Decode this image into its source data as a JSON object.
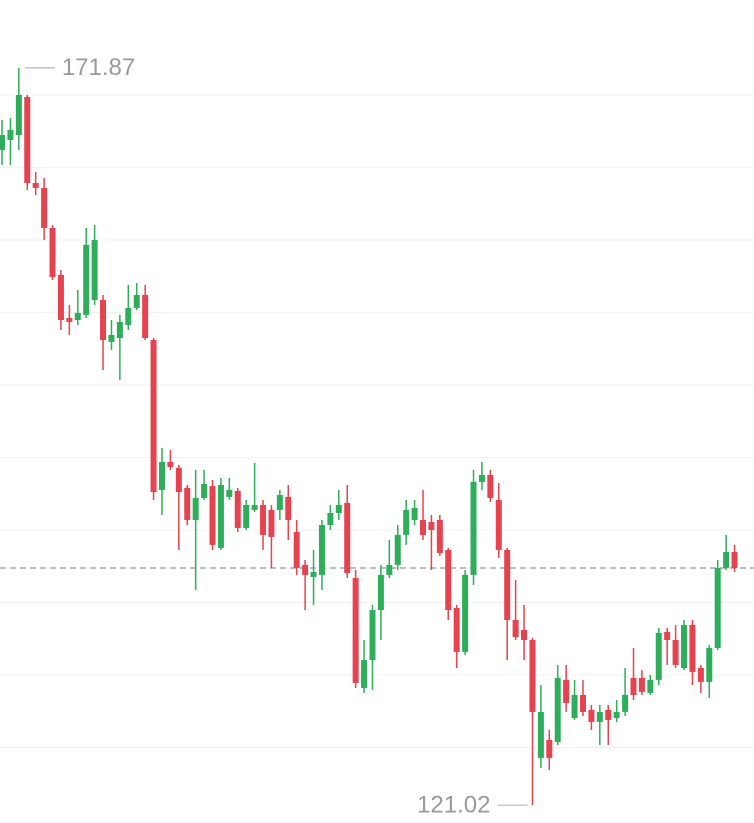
{
  "chart_data": {
    "type": "candlestick",
    "up_color": "#2eae5a",
    "down_color": "#e4434f",
    "grid": true,
    "ylim": [
      119.79,
      176.55
    ],
    "yticks": [
      125,
      130,
      135,
      140,
      145,
      150,
      155,
      160,
      165,
      170
    ],
    "open": [
      166.21,
      166.9,
      167.24,
      169.86,
      163.93,
      163.59,
      160.83,
      157.59,
      154.62,
      154.48,
      154.83,
      155.86,
      155.86,
      152.97,
      153.24,
      154.14,
      155.31,
      156.21,
      153.1,
      142.76,
      144.69,
      144.28,
      142.9,
      140.69,
      142.21,
      143.03,
      138.76,
      142.28,
      142.69,
      140.14,
      141.38,
      141.72,
      141.38,
      141.38,
      142.28,
      139.86,
      137.59,
      136.76,
      136.9,
      140.34,
      141.17,
      141.86,
      136.69,
      129.1,
      131.03,
      134.48,
      136.9,
      137.59,
      139.66,
      140.69,
      140.69,
      140.55,
      140.69,
      138.62,
      134.62,
      131.59,
      136.9,
      143.31,
      143.79,
      142.07,
      138.62,
      133.79,
      133.1,
      132.41,
      124.28,
      125.52,
      125.38,
      129.66,
      127.03,
      128.62,
      127.59,
      126.76,
      127.59,
      127.03,
      127.45,
      129.79,
      129.79,
      128.76,
      129.66,
      132.97,
      132.41,
      130.48,
      133.45,
      130.48,
      129.52,
      131.86,
      137.38,
      138.48
    ],
    "high": [
      168.28,
      168.41,
      171.87,
      170.0,
      164.69,
      164.28,
      161.03,
      157.93,
      155.52,
      156.55,
      160.83,
      161.03,
      156.21,
      154.48,
      154.83,
      156.9,
      157.03,
      156.9,
      153.24,
      145.66,
      145.52,
      144.48,
      143.1,
      144.14,
      144.14,
      143.45,
      143.59,
      143.59,
      142.9,
      142.07,
      144.62,
      142.07,
      141.72,
      142.76,
      143.1,
      140.69,
      137.93,
      138.62,
      140.69,
      141.72,
      142.76,
      143.1,
      137.24,
      132.41,
      134.83,
      137.59,
      139.31,
      140.34,
      142.07,
      142.07,
      142.76,
      141.03,
      141.03,
      138.76,
      134.83,
      137.24,
      144.14,
      144.69,
      144.14,
      143.24,
      138.76,
      136.55,
      134.83,
      132.55,
      129.31,
      126.21,
      130.69,
      130.69,
      129.66,
      129.66,
      127.93,
      127.93,
      127.93,
      128.28,
      130.48,
      131.86,
      130.34,
      130.0,
      133.24,
      133.24,
      133.45,
      133.79,
      133.79,
      130.69,
      132.07,
      137.93,
      139.66,
      138.97
    ],
    "low": [
      165.17,
      165.17,
      166.21,
      163.45,
      163.1,
      160.0,
      157.24,
      153.79,
      153.45,
      154.14,
      154.62,
      155.52,
      151.03,
      152.41,
      150.34,
      153.79,
      155.17,
      153.1,
      142.07,
      141.03,
      144.14,
      138.62,
      140.34,
      135.86,
      142.07,
      138.62,
      138.62,
      142.07,
      139.86,
      140.0,
      141.24,
      138.62,
      137.38,
      140.69,
      139.31,
      136.9,
      134.48,
      134.83,
      135.86,
      140.0,
      140.69,
      136.69,
      129.1,
      128.76,
      128.97,
      132.41,
      136.69,
      137.24,
      138.97,
      140.34,
      139.31,
      137.24,
      138.21,
      133.79,
      130.48,
      131.38,
      136.21,
      142.76,
      141.93,
      138.07,
      131.03,
      132.41,
      131.03,
      121.02,
      123.59,
      123.45,
      125.17,
      127.45,
      126.9,
      127.17,
      126.21,
      125.17,
      125.17,
      126.76,
      127.17,
      128.28,
      128.62,
      128.62,
      129.31,
      130.69,
      130.48,
      130.34,
      129.31,
      128.76,
      128.41,
      131.72,
      137.24,
      137.1
    ],
    "close": [
      167.24,
      167.59,
      170.0,
      163.93,
      163.59,
      160.83,
      157.45,
      154.48,
      154.34,
      154.97,
      159.66,
      160.0,
      153.1,
      153.45,
      154.34,
      155.31,
      156.21,
      153.24,
      142.62,
      144.69,
      144.34,
      142.62,
      140.69,
      142.21,
      143.17,
      138.97,
      143.1,
      142.76,
      140.14,
      141.72,
      141.72,
      139.66,
      139.52,
      142.41,
      140.69,
      137.38,
      136.9,
      137.1,
      140.34,
      141.17,
      141.72,
      137.03,
      129.45,
      131.03,
      134.48,
      136.9,
      137.59,
      139.66,
      141.38,
      141.52,
      139.66,
      140.0,
      138.41,
      134.48,
      131.59,
      136.9,
      143.31,
      143.79,
      142.21,
      138.62,
      133.79,
      132.62,
      132.41,
      127.45,
      127.45,
      124.28,
      129.79,
      128.07,
      128.62,
      127.45,
      126.76,
      127.45,
      126.9,
      127.45,
      128.62,
      128.62,
      128.83,
      129.66,
      132.9,
      132.41,
      130.69,
      133.45,
      130.21,
      129.52,
      131.86,
      137.38,
      138.48,
      137.38
    ],
    "annotations": [
      {
        "label": "171.87",
        "value": 171.87
      },
      {
        "label": "121.02",
        "value": 121.02
      }
    ]
  }
}
